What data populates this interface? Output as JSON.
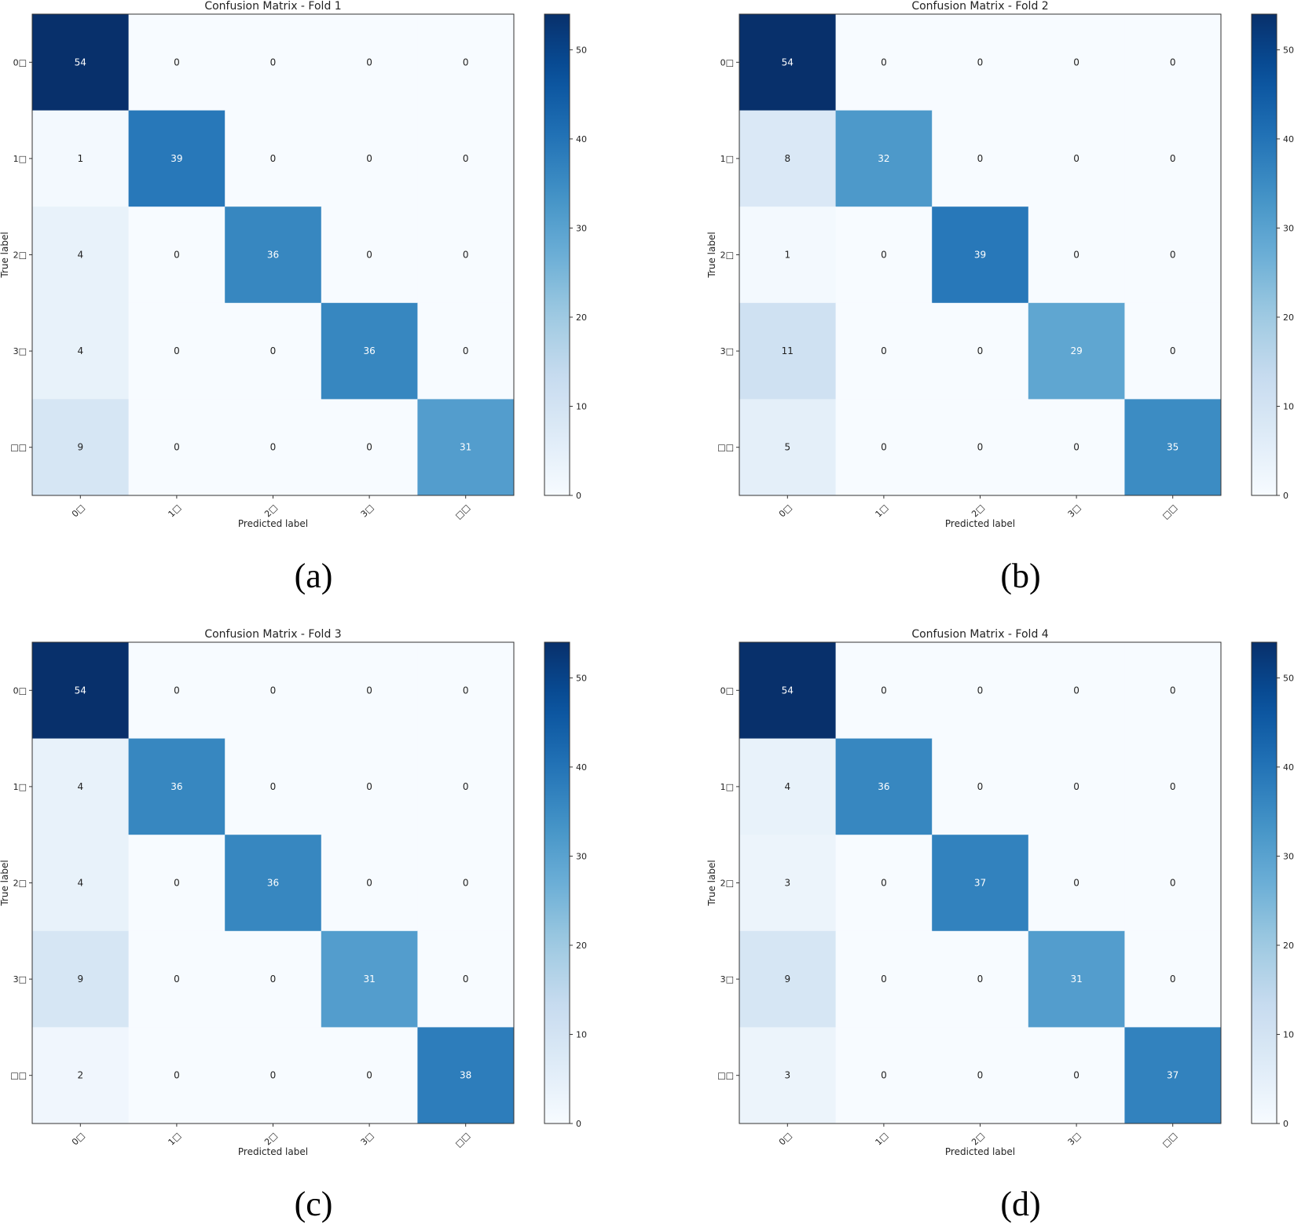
{
  "chart_data": [
    {
      "type": "heatmap",
      "title": "Confusion Matrix - Fold 1",
      "caption": "(a)",
      "xlabel": "Predicted label",
      "ylabel": "True label",
      "x_tick_labels": [
        "0□",
        "1□",
        "2□",
        "3□",
        "□□"
      ],
      "y_tick_labels": [
        "0□",
        "1□",
        "2□",
        "3□",
        "□□"
      ],
      "matrix": [
        [
          54,
          0,
          0,
          0,
          0
        ],
        [
          1,
          39,
          0,
          0,
          0
        ],
        [
          4,
          0,
          36,
          0,
          0
        ],
        [
          4,
          0,
          0,
          36,
          0
        ],
        [
          9,
          0,
          0,
          0,
          31
        ]
      ],
      "colormap": "Blues",
      "colorbar_range": [
        0,
        54
      ],
      "colorbar_ticks": [
        0,
        10,
        20,
        30,
        40,
        50
      ]
    },
    {
      "type": "heatmap",
      "title": "Confusion Matrix - Fold 2",
      "caption": "(b)",
      "xlabel": "Predicted label",
      "ylabel": "True label",
      "x_tick_labels": [
        "0□",
        "1□",
        "2□",
        "3□",
        "□□"
      ],
      "y_tick_labels": [
        "0□",
        "1□",
        "2□",
        "3□",
        "□□"
      ],
      "matrix": [
        [
          54,
          0,
          0,
          0,
          0
        ],
        [
          8,
          32,
          0,
          0,
          0
        ],
        [
          1,
          0,
          39,
          0,
          0
        ],
        [
          11,
          0,
          0,
          29,
          0
        ],
        [
          5,
          0,
          0,
          0,
          35
        ]
      ],
      "colormap": "Blues",
      "colorbar_range": [
        0,
        54
      ],
      "colorbar_ticks": [
        0,
        10,
        20,
        30,
        40,
        50
      ]
    },
    {
      "type": "heatmap",
      "title": "Confusion Matrix - Fold 3",
      "caption": "(c)",
      "xlabel": "Predicted label",
      "ylabel": "True label",
      "x_tick_labels": [
        "0□",
        "1□",
        "2□",
        "3□",
        "□□"
      ],
      "y_tick_labels": [
        "0□",
        "1□",
        "2□",
        "3□",
        "□□"
      ],
      "matrix": [
        [
          54,
          0,
          0,
          0,
          0
        ],
        [
          4,
          36,
          0,
          0,
          0
        ],
        [
          4,
          0,
          36,
          0,
          0
        ],
        [
          9,
          0,
          0,
          31,
          0
        ],
        [
          2,
          0,
          0,
          0,
          38
        ]
      ],
      "colormap": "Blues",
      "colorbar_range": [
        0,
        54
      ],
      "colorbar_ticks": [
        0,
        10,
        20,
        30,
        40,
        50
      ]
    },
    {
      "type": "heatmap",
      "title": "Confusion Matrix - Fold 4",
      "caption": "(d)",
      "xlabel": "Predicted label",
      "ylabel": "True label",
      "x_tick_labels": [
        "0□",
        "1□",
        "2□",
        "3□",
        "□□"
      ],
      "y_tick_labels": [
        "0□",
        "1□",
        "2□",
        "3□",
        "□□"
      ],
      "matrix": [
        [
          54,
          0,
          0,
          0,
          0
        ],
        [
          4,
          36,
          0,
          0,
          0
        ],
        [
          3,
          0,
          37,
          0,
          0
        ],
        [
          9,
          0,
          0,
          31,
          0
        ],
        [
          3,
          0,
          0,
          0,
          37
        ]
      ],
      "colormap": "Blues",
      "colorbar_range": [
        0,
        54
      ],
      "colorbar_ticks": [
        0,
        10,
        20,
        30,
        40,
        50
      ]
    }
  ]
}
